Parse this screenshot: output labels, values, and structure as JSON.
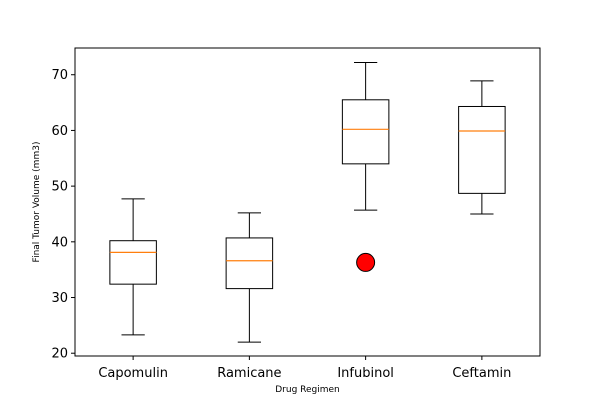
{
  "chart_data": {
    "type": "box",
    "title": "",
    "xlabel": "Drug Regimen",
    "ylabel": "Final Tumor Volume (mm3)",
    "ylim": [
      19.5,
      74.8
    ],
    "yticks": [
      20,
      30,
      40,
      50,
      60,
      70
    ],
    "yticks_labels": [
      "20",
      "30",
      "40",
      "50",
      "60",
      "70"
    ],
    "grid": false,
    "categories": [
      "Capomulin",
      "Ramicane",
      "Infubinol",
      "Ceftamin"
    ],
    "boxes": [
      {
        "name": "Capomulin",
        "whisker_low": 23.3,
        "q1": 32.4,
        "median": 38.1,
        "q3": 40.2,
        "whisker_high": 47.7,
        "outliers": []
      },
      {
        "name": "Ramicane",
        "whisker_low": 22.0,
        "q1": 31.6,
        "median": 36.6,
        "q3": 40.7,
        "whisker_high": 45.2,
        "outliers": []
      },
      {
        "name": "Infubinol",
        "whisker_low": 45.7,
        "q1": 54.0,
        "median": 60.2,
        "q3": 65.5,
        "whisker_high": 72.2,
        "outliers": [
          36.3
        ]
      },
      {
        "name": "Ceftamin",
        "whisker_low": 45.0,
        "q1": 48.7,
        "median": 59.9,
        "q3": 64.3,
        "whisker_high": 68.9,
        "outliers": []
      }
    ],
    "colors": {
      "box": "#000000",
      "median": "#ff7f0e",
      "outlier_fill": "#ff0000",
      "outlier_edge": "#000000"
    }
  }
}
